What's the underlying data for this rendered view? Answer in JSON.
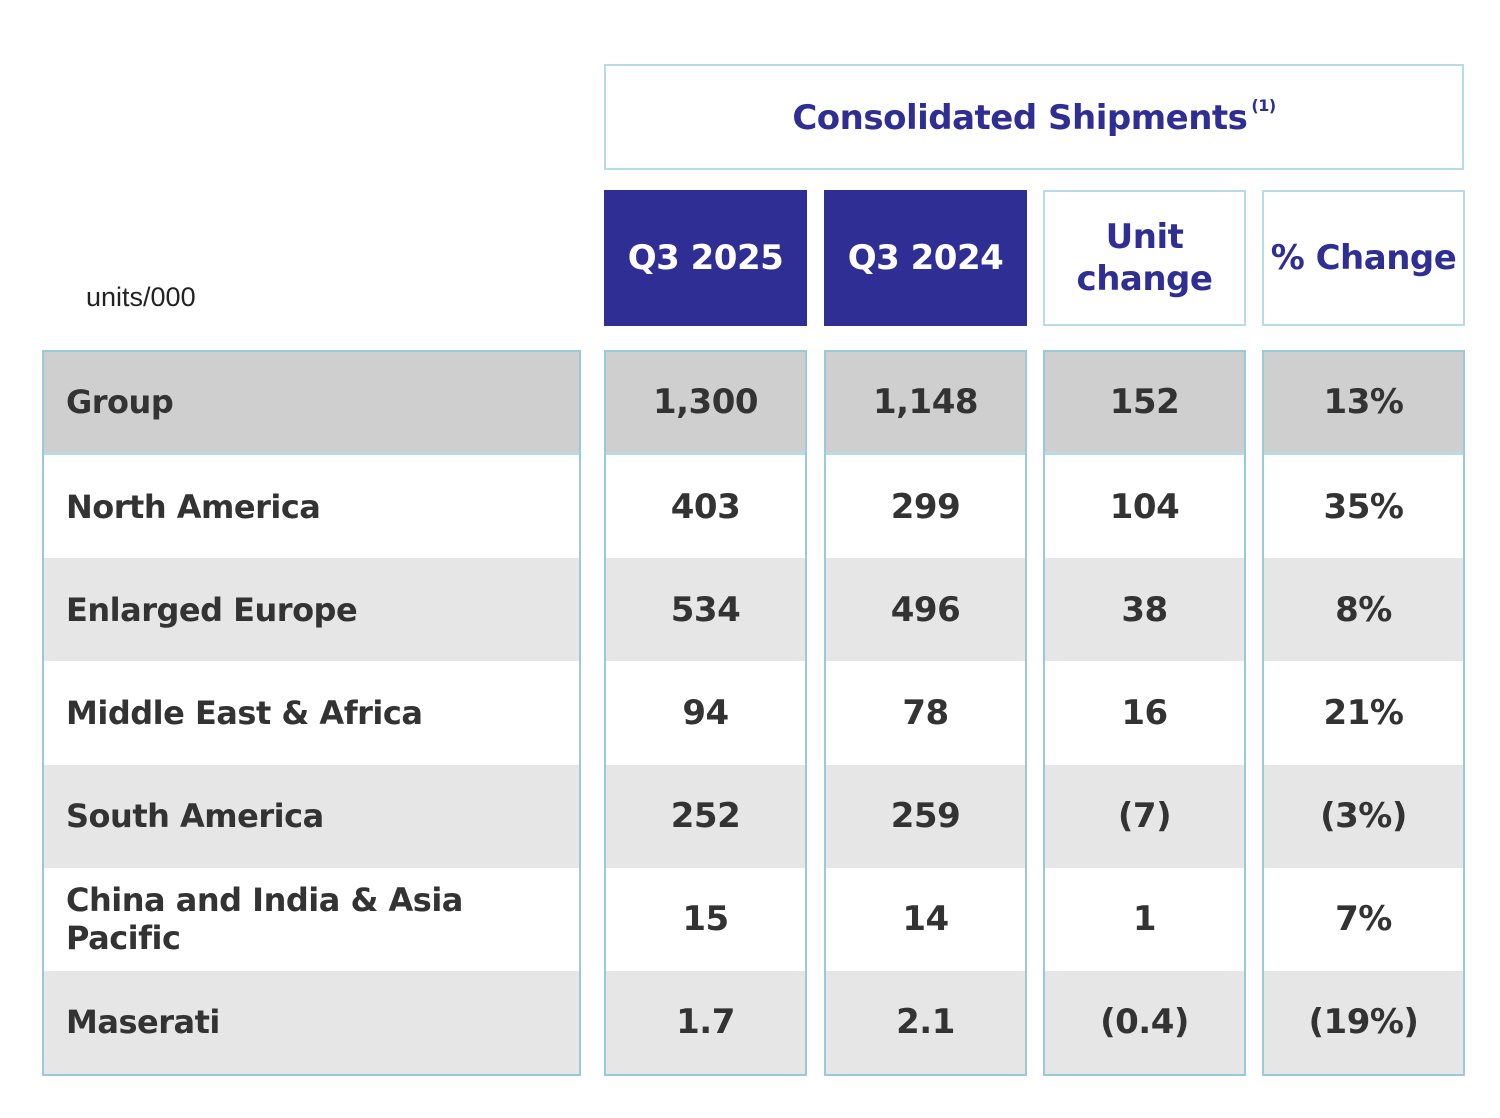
{
  "chart_data": {
    "type": "table",
    "title": "Consolidated Shipments",
    "title_footnote": "(1)",
    "units_label": "units/000",
    "columns": [
      "Q3 2025",
      "Q3 2024",
      "Unit change",
      "% Change"
    ],
    "header_lines": {
      "unit_change_line1": "Unit",
      "unit_change_line2": "change"
    },
    "rows": [
      {
        "label": "Group",
        "q3_2025": "1,300",
        "q3_2024": "1,148",
        "unit_change": "152",
        "pct_change": "13%"
      },
      {
        "label": "North America",
        "q3_2025": "403",
        "q3_2024": "299",
        "unit_change": "104",
        "pct_change": "35%"
      },
      {
        "label": "Enlarged Europe",
        "q3_2025": "534",
        "q3_2024": "496",
        "unit_change": "38",
        "pct_change": "8%"
      },
      {
        "label": "Middle East & Africa",
        "q3_2025": "94",
        "q3_2024": "78",
        "unit_change": "16",
        "pct_change": "21%"
      },
      {
        "label": "South America",
        "q3_2025": "252",
        "q3_2024": "259",
        "unit_change": "(7)",
        "pct_change": "(3%)"
      },
      {
        "label": "China and India & Asia Pacific",
        "q3_2025": "15",
        "q3_2024": "14",
        "unit_change": "1",
        "pct_change": "7%"
      },
      {
        "label": "Maserati",
        "q3_2025": "1.7",
        "q3_2024": "2.1",
        "unit_change": "(0.4)",
        "pct_change": "(19%)"
      }
    ]
  },
  "colors": {
    "brand_navy": "#2e2e94",
    "border_blue": "#b7dbe8",
    "group_row_gray": "#cfcfcf",
    "alt_row_gray": "#e6e6e6"
  }
}
